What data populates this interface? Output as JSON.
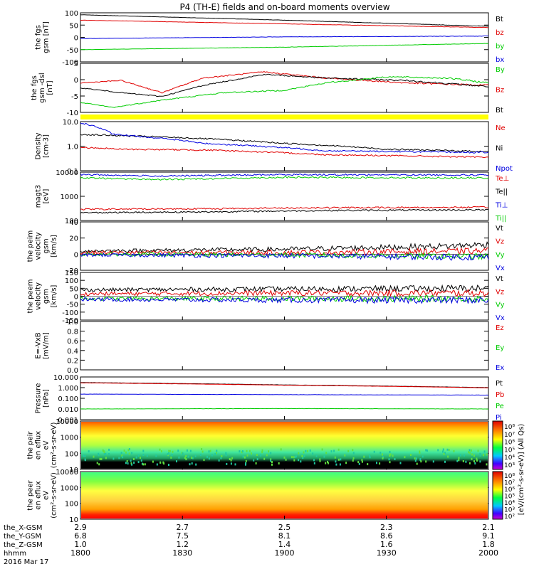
{
  "title": "P4 (TH-E) fields and on-board moments overview",
  "colors": {
    "black": "#000000",
    "red": "#e00000",
    "blue": "#0000e0",
    "green": "#00cc00",
    "yellow": "#ffff00"
  },
  "x_axis": {
    "tick_labels": [
      "1800",
      "1830",
      "1900",
      "1930",
      "2000"
    ],
    "rows": [
      {
        "label": "the_X-GSM",
        "values": [
          "2.9",
          "2.7",
          "2.5",
          "2.3",
          "2.1"
        ]
      },
      {
        "label": "the_Y-GSM",
        "values": [
          "6.8",
          "7.5",
          "8.1",
          "8.6",
          "9.1"
        ]
      },
      {
        "label": "the_Z-GSM",
        "values": [
          "1.0",
          "1.2",
          "1.4",
          "1.6",
          "1.8"
        ]
      },
      {
        "label": "hhmm",
        "values": [
          "1800",
          "1830",
          "1900",
          "1930",
          "2000"
        ]
      }
    ],
    "date": "2016 Mar 17"
  },
  "colorbar": {
    "label": "[eV/(cm²-s-sr-eV)] (All Qs)",
    "ticks_top": [
      "10⁸",
      "10⁷",
      "10⁶",
      "10⁵",
      "10⁴",
      "10³"
    ],
    "ticks_bottom": [
      "10⁸",
      "10⁷",
      "10⁶",
      "10⁵",
      "10⁴",
      "10³",
      "10²"
    ]
  },
  "panels": [
    {
      "ylabel": "the fgs gsm [nT]",
      "yticks": [
        "100",
        "50",
        "0",
        "-50",
        "-100"
      ],
      "legend": [
        {
          "t": "Bt",
          "c": "black"
        },
        {
          "t": "bz",
          "c": "red"
        },
        {
          "t": "by",
          "c": "green"
        },
        {
          "t": "bx",
          "c": "blue"
        }
      ]
    },
    {
      "ylabel": "the fgs gsm -dsl [nT]",
      "yticks": [
        "5",
        "0",
        "-5",
        "-10"
      ],
      "legend": [
        {
          "t": "By",
          "c": "green"
        },
        {
          "t": "Bz",
          "c": "red"
        },
        {
          "t": "Bt",
          "c": "black"
        }
      ]
    },
    {
      "ylabel": "Density [cm-3]",
      "yticks": [
        "10.0",
        "1.0",
        "0.1"
      ],
      "legend": [
        {
          "t": "Ne",
          "c": "red"
        },
        {
          "t": "Ni",
          "c": "black"
        },
        {
          "t": "Npot",
          "c": "blue"
        }
      ]
    },
    {
      "ylabel": "magt3 [eV]",
      "yticks": [
        "10000",
        "1000",
        "100"
      ],
      "legend": [
        {
          "t": "Te⊥",
          "c": "red"
        },
        {
          "t": "Te||",
          "c": "black"
        },
        {
          "t": "Ti⊥",
          "c": "blue"
        },
        {
          "t": "Ti||",
          "c": "green"
        }
      ]
    },
    {
      "ylabel": "the peim velocity gsm [km/s]",
      "yticks": [
        "40",
        "20",
        "0",
        "-20"
      ],
      "legend": [
        {
          "t": "Vt",
          "c": "black"
        },
        {
          "t": "Vz",
          "c": "red"
        },
        {
          "t": "Vy",
          "c": "green"
        },
        {
          "t": "Vx",
          "c": "blue"
        }
      ]
    },
    {
      "ylabel": "the peem velocity gsm [km/s]",
      "yticks": [
        "150",
        "100",
        "50",
        "0",
        "-50",
        "-100",
        "-150"
      ],
      "legend": [
        {
          "t": "Vt",
          "c": "black"
        },
        {
          "t": "Vz",
          "c": "red"
        },
        {
          "t": "Vy",
          "c": "green"
        },
        {
          "t": "Vx",
          "c": "blue"
        }
      ]
    },
    {
      "ylabel": "E=-VxB [mV/m]",
      "yticks": [
        "1.0",
        "0.8",
        "0.6",
        "0.4",
        "0.2",
        "0.0"
      ],
      "legend": [
        {
          "t": "Ez",
          "c": "red"
        },
        {
          "t": "Ey",
          "c": "green"
        },
        {
          "t": "Ex",
          "c": "blue"
        }
      ]
    },
    {
      "ylabel": "Pressure [nPa]",
      "yticks": [
        "10.000",
        "1.000",
        "0.100",
        "0.010",
        "0.001"
      ],
      "legend": [
        {
          "t": "Pt",
          "c": "black"
        },
        {
          "t": "Pb",
          "c": "red"
        },
        {
          "t": "Pe",
          "c": "green"
        },
        {
          "t": "Pi",
          "c": "blue"
        }
      ]
    },
    {
      "ylabel": "the peir en eflux eV (cm²-s-sr-eV)",
      "yticks": [
        "10000",
        "1000",
        "100",
        "10"
      ],
      "legend": []
    },
    {
      "ylabel": "the peer en eflux eV (cm²-s-sr-eV)",
      "yticks": [
        "10000",
        "1000",
        "100",
        "10"
      ],
      "legend": []
    }
  ],
  "chart_data": {
    "type": "line",
    "x_range": [
      "18:00",
      "20:00"
    ],
    "panels": [
      {
        "id": "fgs_gsm",
        "ylim": [
          -100,
          100
        ],
        "series": [
          {
            "name": "Bt",
            "color": "black",
            "points": [
              [
                0,
                92
              ],
              [
                0.5,
                70
              ],
              [
                1,
                45
              ]
            ]
          },
          {
            "name": "bz",
            "color": "red",
            "points": [
              [
                0,
                70
              ],
              [
                0.5,
                55
              ],
              [
                1,
                40
              ]
            ]
          },
          {
            "name": "by",
            "color": "green",
            "points": [
              [
                0,
                -50
              ],
              [
                0.5,
                -40
              ],
              [
                1,
                -25
              ]
            ]
          },
          {
            "name": "bx",
            "color": "blue",
            "points": [
              [
                0,
                -5
              ],
              [
                0.5,
                2
              ],
              [
                1,
                5
              ]
            ]
          }
        ]
      },
      {
        "id": "fgs_gsm_dsl",
        "ylim": [
          -12,
          8
        ],
        "series": [
          {
            "name": "Bz",
            "color": "red",
            "points": [
              [
                0,
                0
              ],
              [
                0.1,
                1
              ],
              [
                0.2,
                -4
              ],
              [
                0.3,
                2
              ],
              [
                0.45,
                4.5
              ],
              [
                0.6,
                2
              ],
              [
                0.8,
                0
              ],
              [
                1,
                -1
              ]
            ]
          },
          {
            "name": "Bt",
            "color": "black",
            "points": [
              [
                0,
                -2
              ],
              [
                0.1,
                -4
              ],
              [
                0.2,
                -5.5
              ],
              [
                0.3,
                -1
              ],
              [
                0.45,
                3.5
              ],
              [
                0.6,
                2
              ],
              [
                0.8,
                1
              ],
              [
                1,
                -1.5
              ]
            ]
          },
          {
            "name": "By",
            "color": "green",
            "points": [
              [
                0,
                -8
              ],
              [
                0.08,
                -10
              ],
              [
                0.2,
                -7
              ],
              [
                0.35,
                -4
              ],
              [
                0.5,
                -3
              ],
              [
                0.6,
                0
              ],
              [
                0.75,
                2.5
              ],
              [
                0.9,
                2
              ],
              [
                1,
                0
              ]
            ]
          }
        ]
      },
      {
        "id": "density",
        "yscale": "log",
        "ylim": [
          0.1,
          10
        ],
        "series": [
          {
            "name": "Ni",
            "color": "black",
            "points": [
              [
                0,
                3
              ],
              [
                0.25,
                2.2
              ],
              [
                0.5,
                1.3
              ],
              [
                0.75,
                0.75
              ],
              [
                1,
                0.6
              ]
            ]
          },
          {
            "name": "Ne",
            "color": "red",
            "points": [
              [
                0,
                0.9
              ],
              [
                0.1,
                0.75
              ],
              [
                0.3,
                0.7
              ],
              [
                0.6,
                0.45
              ],
              [
                1,
                0.35
              ]
            ]
          },
          {
            "name": "Npot",
            "color": "blue",
            "points": [
              [
                0,
                9
              ],
              [
                0.08,
                3
              ],
              [
                0.3,
                1.3
              ],
              [
                0.6,
                0.65
              ],
              [
                1,
                0.55
              ]
            ]
          }
        ]
      },
      {
        "id": "magt3",
        "yscale": "log",
        "ylim": [
          40,
          12000
        ],
        "series": [
          {
            "name": "Ti⊥",
            "color": "blue",
            "points": [
              [
                0,
                9000
              ],
              [
                0.2,
                7500
              ],
              [
                0.5,
                9000
              ],
              [
                1,
                8500
              ]
            ]
          },
          {
            "name": "Ti||",
            "color": "green",
            "points": [
              [
                0,
                6000
              ],
              [
                0.2,
                5000
              ],
              [
                0.5,
                6500
              ],
              [
                1,
                6000
              ]
            ]
          },
          {
            "name": "Te⊥",
            "color": "red",
            "points": [
              [
                0,
                150
              ],
              [
                0.3,
                160
              ],
              [
                0.6,
                180
              ],
              [
                1,
                190
              ]
            ]
          },
          {
            "name": "Te||",
            "color": "black",
            "points": [
              [
                0,
                100
              ],
              [
                0.3,
                110
              ],
              [
                0.6,
                130
              ],
              [
                1,
                140
              ]
            ]
          }
        ]
      },
      {
        "id": "peim_velocity",
        "ylim": [
          -20,
          40
        ],
        "series": [
          {
            "name": "Vt",
            "color": "black",
            "points": [
              [
                0,
                4
              ],
              [
                0.5,
                6
              ],
              [
                0.9,
                10
              ],
              [
                1,
                12
              ]
            ]
          },
          {
            "name": "Vz",
            "color": "red",
            "points": [
              [
                0,
                2
              ],
              [
                0.5,
                2
              ],
              [
                1,
                4
              ]
            ]
          },
          {
            "name": "Vy",
            "color": "green",
            "points": [
              [
                0,
                0
              ],
              [
                0.5,
                -1
              ],
              [
                1,
                -3
              ]
            ]
          },
          {
            "name": "Vx",
            "color": "blue",
            "points": [
              [
                0,
                -1
              ],
              [
                0.5,
                -2
              ],
              [
                1,
                -4
              ]
            ]
          }
        ]
      },
      {
        "id": "peem_velocity",
        "ylim": [
          -150,
          150
        ],
        "series": [
          {
            "name": "Vt",
            "color": "black",
            "points": [
              [
                0,
                40
              ],
              [
                0.5,
                45
              ],
              [
                1,
                50
              ]
            ]
          },
          {
            "name": "Vz",
            "color": "red",
            "points": [
              [
                0,
                15
              ],
              [
                0.5,
                20
              ],
              [
                1,
                20
              ]
            ]
          },
          {
            "name": "Vy",
            "color": "green",
            "points": [
              [
                0,
                -15
              ],
              [
                0.5,
                -15
              ],
              [
                1,
                -15
              ]
            ]
          },
          {
            "name": "Vx",
            "color": "blue",
            "points": [
              [
                0,
                -20
              ],
              [
                0.5,
                -25
              ],
              [
                1,
                -25
              ]
            ]
          }
        ]
      },
      {
        "id": "e_field",
        "ylim": [
          0,
          1
        ],
        "series": []
      },
      {
        "id": "pressure",
        "yscale": "log",
        "ylim": [
          0.001,
          10
        ],
        "series": [
          {
            "name": "Pt",
            "color": "black",
            "points": [
              [
                0,
                3
              ],
              [
                0.5,
                1.8
              ],
              [
                1,
                1
              ]
            ]
          },
          {
            "name": "Pb",
            "color": "red",
            "points": [
              [
                0,
                2.8
              ],
              [
                0.5,
                1.7
              ],
              [
                1,
                0.95
              ]
            ]
          },
          {
            "name": "Pi",
            "color": "blue",
            "points": [
              [
                0,
                0.25
              ],
              [
                0.5,
                0.22
              ],
              [
                1,
                0.2
              ]
            ]
          },
          {
            "name": "Pe",
            "color": "green",
            "points": [
              [
                0,
                0.01
              ],
              [
                0.5,
                0.011
              ],
              [
                1,
                0.01
              ]
            ]
          }
        ]
      }
    ]
  }
}
